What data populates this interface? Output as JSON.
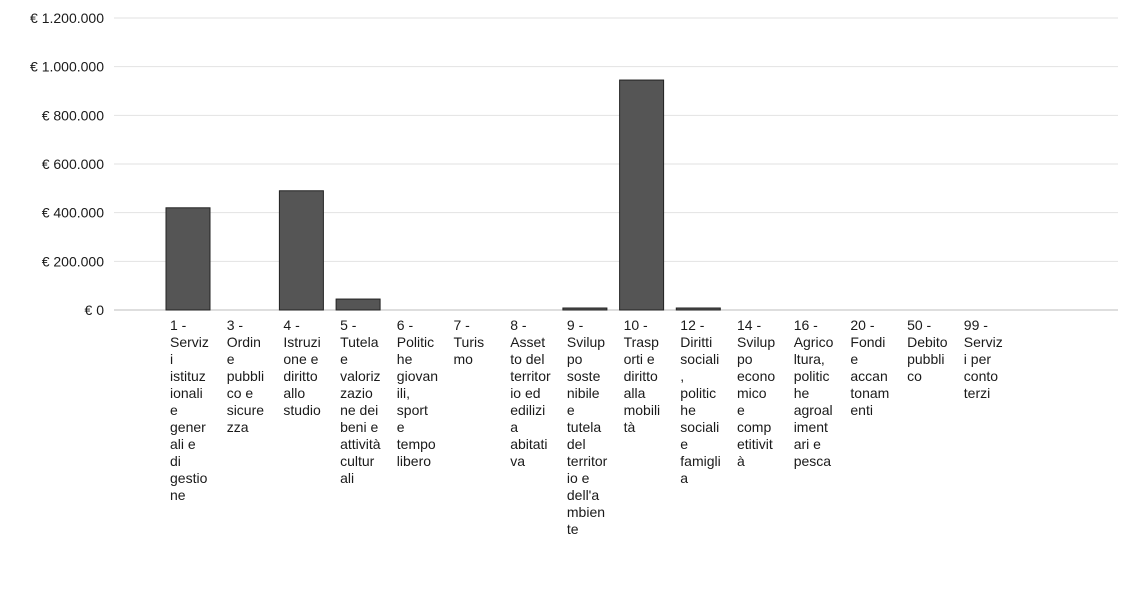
{
  "chart_data": {
    "type": "bar",
    "title": "",
    "xlabel": "",
    "ylabel": "",
    "ylim": [
      0,
      1200000
    ],
    "yticks": [
      {
        "value": 0,
        "label": "€ 0"
      },
      {
        "value": 200000,
        "label": "€ 200.000"
      },
      {
        "value": 400000,
        "label": "€ 400.000"
      },
      {
        "value": 600000,
        "label": "€ 600.000"
      },
      {
        "value": 800000,
        "label": "€ 800.000"
      },
      {
        "value": 1000000,
        "label": "€ 1.000.000"
      },
      {
        "value": 1200000,
        "label": "€ 1.200.000"
      }
    ],
    "grid": true,
    "legend": "none",
    "bar_color": "#555555",
    "categories": [
      "1 - Servizi istituzionali e generali e di gestione",
      "3 - Ordine pubblico e sicurezza",
      "4 - Istruzione e diritto allo studio",
      "5 - Tutela e valorizzazione dei beni e attività culturali",
      "6 - Politiche giovanili, sport e tempo libero",
      "7 - Turismo",
      "8 - Assetto del territorio ed edilizia abitativa",
      "9 - Sviluppo sostenibile e tutela del territorio e dell'ambiente",
      "10 - Trasporti e diritto alla mobilità",
      "12 - Diritti sociali, politiche sociali e famiglia",
      "14 - Sviluppo economico e competitività",
      "16 - Agricoltura, politiche agroalimentari e pesca",
      "20 - Fondi e accantonamenti",
      "50 - Debito pubblico",
      "99 - Servizi per conto terzi"
    ],
    "category_lines": [
      [
        "1 -",
        "Serviz",
        "i",
        "istituz",
        "ionali",
        "e",
        "gener",
        "ali e",
        "di",
        "gestio",
        "ne"
      ],
      [
        "3 -",
        "Ordin",
        "e",
        "pubbli",
        "co e",
        "sicure",
        "zza"
      ],
      [
        "4 -",
        "Istruzi",
        "one e",
        "diritto",
        "allo",
        "studio"
      ],
      [
        "5 -",
        "Tutela",
        "e",
        "valoriz",
        "zazio",
        "ne dei",
        "beni e",
        "attività",
        "cultur",
        "ali"
      ],
      [
        "6 -",
        "Politic",
        "he",
        "giovan",
        "ili,",
        "sport",
        "e",
        "tempo",
        "libero"
      ],
      [
        "7 -",
        "Turis",
        "mo"
      ],
      [
        "8 -",
        "Asset",
        "to del",
        "territor",
        "io ed",
        "edilizi",
        "a",
        "abitati",
        "va"
      ],
      [
        "9 -",
        "Svilup",
        "po",
        "soste",
        "nibile",
        "e",
        "tutela",
        "del",
        "territor",
        "io e",
        "dell'a",
        "mbien",
        "te"
      ],
      [
        "10 -",
        "Trasp",
        "orti e",
        "diritto",
        "alla",
        "mobili",
        "tà"
      ],
      [
        "12 -",
        "Diritti",
        "sociali",
        ",",
        "politic",
        "he",
        "sociali",
        "e",
        "famigli",
        "a"
      ],
      [
        "14 -",
        "Svilup",
        "po",
        "econo",
        "mico",
        "e",
        "comp",
        "etitivit",
        "à"
      ],
      [
        "16 -",
        "Agrico",
        "ltura,",
        "politic",
        "he",
        "agroal",
        "iment",
        "ari e",
        "pesca"
      ],
      [
        "20 -",
        "Fondi",
        "e",
        "accan",
        "tonam",
        "enti"
      ],
      [
        "50 -",
        "Debito",
        "pubbli",
        "co"
      ],
      [
        "99 -",
        "Serviz",
        "i per",
        "conto",
        "terzi"
      ]
    ],
    "values": [
      420000,
      0,
      490000,
      45000,
      0,
      0,
      0,
      5000,
      945000,
      5000,
      0,
      0,
      0,
      0,
      0
    ]
  }
}
